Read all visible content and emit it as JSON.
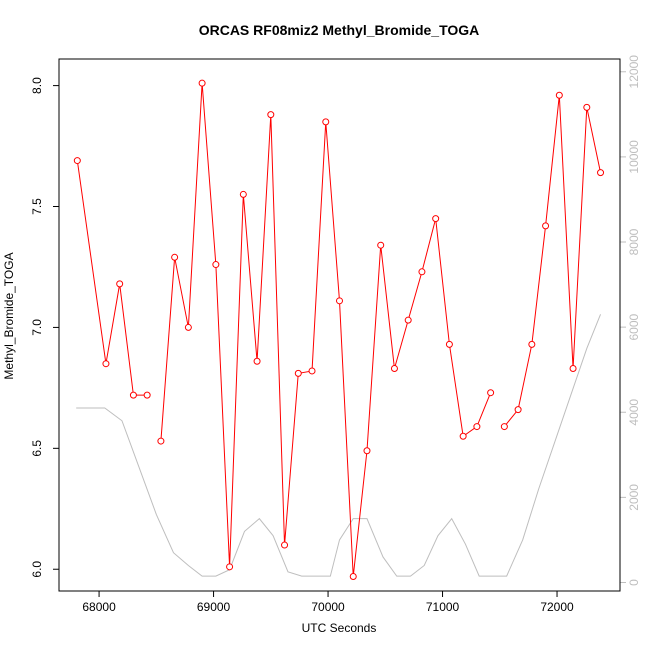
{
  "chart_data": {
    "type": "line",
    "title": "ORCAS RF08miz2 Methyl_Bromide_TOGA",
    "xlabel": "UTC Seconds",
    "ylabel": "Methyl_Bromide_TOGA",
    "xlim": [
      67650,
      72550
    ],
    "ylim": [
      5.91,
      8.11
    ],
    "y2lim": [
      -200,
      12300
    ],
    "x_ticks": [
      68000,
      69000,
      70000,
      71000,
      72000
    ],
    "x_tick_labels": [
      "68000",
      "69000",
      "70000",
      "71000",
      "72000"
    ],
    "y_ticks": [
      6.0,
      6.5,
      7.0,
      7.5,
      8.0
    ],
    "y_tick_labels": [
      "6.0",
      "6.5",
      "7.0",
      "7.5",
      "8.0"
    ],
    "y2_ticks": [
      0,
      2000,
      4000,
      6000,
      8000,
      10000,
      12000
    ],
    "y2_tick_labels": [
      "0",
      "2000",
      "4000",
      "6000",
      "8000",
      "10000",
      "12000"
    ],
    "grid": false,
    "series": [
      {
        "axis": "left",
        "color": "#ff0000",
        "marker": "open-circle",
        "x": [
          67810,
          68060,
          68180,
          68300,
          68420,
          68540,
          68660,
          68780,
          68900,
          69020,
          69140,
          69260,
          69380,
          69500,
          69620,
          69740,
          69860,
          69980,
          70100,
          70220,
          70340,
          70460,
          70580,
          70700,
          70820,
          70940,
          71060,
          71180,
          71300,
          71420,
          71540,
          71660,
          71780,
          71900,
          72020,
          72140,
          72260,
          72380
        ],
        "values": [
          7.69,
          6.85,
          7.18,
          6.72,
          6.72,
          6.53,
          7.29,
          7.0,
          8.01,
          7.26,
          6.01,
          7.55,
          6.86,
          7.88,
          6.1,
          6.81,
          6.82,
          7.85,
          7.11,
          5.97,
          6.49,
          7.34,
          6.83,
          7.03,
          7.23,
          7.45,
          6.93,
          6.55,
          6.59,
          6.73,
          6.59,
          6.66,
          6.93,
          7.42,
          7.96,
          6.83,
          7.91,
          7.64
        ],
        "segments": [
          [
            0,
            4
          ],
          [
            5,
            29
          ],
          [
            30,
            37
          ]
        ]
      },
      {
        "axis": "right",
        "color": "#bebebe",
        "marker": "none",
        "x": [
          67800,
          68050,
          68200,
          68350,
          68500,
          68650,
          68780,
          68900,
          69020,
          69140,
          69270,
          69400,
          69520,
          69650,
          69770,
          69900,
          70020,
          70100,
          70220,
          70340,
          70480,
          70600,
          70720,
          70840,
          70960,
          71080,
          71200,
          71320,
          71440,
          71560,
          71700,
          71840,
          71980,
          72120,
          72260,
          72380
        ],
        "values": [
          4100,
          4100,
          3800,
          2700,
          1600,
          700,
          400,
          150,
          150,
          300,
          1200,
          1500,
          1100,
          250,
          150,
          150,
          150,
          1000,
          1500,
          1500,
          600,
          150,
          150,
          400,
          1100,
          1500,
          900,
          150,
          150,
          150,
          1000,
          2200,
          3300,
          4400,
          5500,
          6300
        ]
      }
    ]
  }
}
